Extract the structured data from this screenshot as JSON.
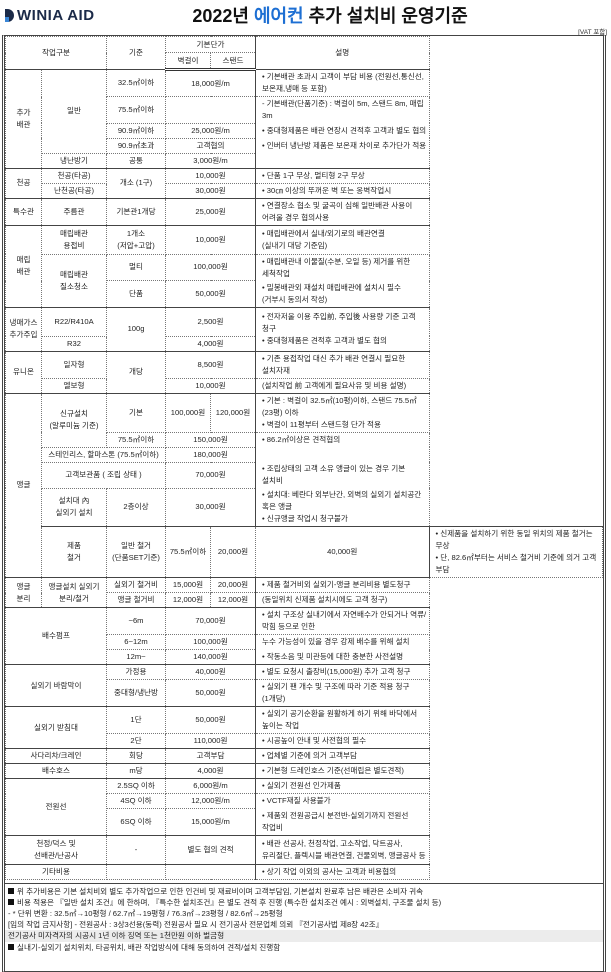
{
  "header": {
    "logo": "WINIA AID",
    "title_pre": "2022년 ",
    "title_hl": "에어컨",
    "title_post": " 추가 설치비 운영기준",
    "vat": "[VAT 포함]",
    "accent_color": "#1d6fd3"
  },
  "table_head": {
    "work_type": "작업구분",
    "standard": "기준",
    "base_price": "기본단가",
    "wall": "벽걸이",
    "stand": "스탠드",
    "description": "설명"
  },
  "rows": [
    [
      "추가\n배관",
      "일반",
      "32.5㎡이하",
      "18,000원/m",
      "• 기본배관 초과시 고객이 부담 비용 (전원선,통신선,보온재,냉매 등 포함)"
    ],
    [
      "75.5㎡이하",
      "",
      "- 기본배관(단품기준) : 벽걸이 5m, 스탠드 8m, 매립 3m"
    ],
    [
      "90.9㎡이하",
      "25,000원/m",
      "• 중대형제품은 배관 연장시 견적후 고객과 별도 협의"
    ],
    [
      "90.9㎡초과",
      "고객협의",
      "• 인버터 냉난방 제품은 보온재 차이로 추가단가 적용"
    ],
    [
      "냉난방기",
      "공통",
      "3,000원/m",
      ""
    ],
    [
      "천공",
      "천공(타공)",
      "개소 (1구)",
      "10,000원",
      "• 단품 1구 무상, 멀티형 2구 무상"
    ],
    [
      "난천공(타공)",
      "30,000원",
      "• 30㎝ 이상의 뚜꺼운 벽 또는 옹벽작업시"
    ],
    [
      "특수관",
      "주름관",
      "기본관1개당",
      "25,000원",
      "• 연결장소 협소 및 굴곡이 심해 일반배관 사용이 어려울 경우 협의사용"
    ],
    [
      "매립\n배관",
      "매립배관\n용접비",
      "1개소\n(저압+고압)",
      "10,000원",
      "• 매립배관에서 실내/외기로의 배관연결\n (실내기 대당 기준임)"
    ],
    [
      "매립배관\n질소청소",
      "멀티",
      "100,000원",
      "• 매립배관내 이물질(수분, 오일 등) 제거를 위한 세척작업"
    ],
    [
      "단품",
      "50,000원",
      "• 밀봉배관외 재설치 매립배관에 설치시 필수 (거부시 동의서 작성)"
    ],
    [
      "냉매가스\n추가주입",
      "R22/R410A",
      "100g",
      "2,500원",
      "• 전자저울 이용 주입前, 주입後 사용량 기준 고객 청구\n• 중대형제품은 견적후 고객과 별도 협의"
    ],
    [
      "R32",
      "4,000원"
    ],
    [
      "유니온",
      "일자형",
      "개당",
      "8,500원",
      "• 기존 용접작업 대신 추가 배관 연결시 필요한 설치자재"
    ],
    [
      "엘보형",
      "10,000원",
      " (설치작업 前 고객에게 필요사유 및 비용 설명)"
    ],
    [
      "앵글",
      "신규설치\n(알루미늄 기준)",
      "기본",
      "100,000원",
      "120,000원",
      "• 기본 : 벽걸이 32.5㎡(10평)이하, 스탠드 75.5㎡(23평) 이하\n• 벽걸이 11평부터 스탠드형 단가 적용"
    ],
    [
      "75.5㎡이하",
      "150,000원",
      "• 86.2㎡이상은 견적협의"
    ],
    [
      "스테인리스, 할마스톤 (75.5㎡이하)",
      "180,000원",
      ""
    ],
    [
      "고객보관품 ( 조립 상태 )",
      "70,000원",
      "• 조립상태의 고객 소유 앵글이 있는 경우 기본 설치비"
    ],
    [
      "설치대 內\n실외기 설치",
      "2층이상",
      "30,000원",
      "• 설치대: 베란다 외부난간, 외벽의 실외기 설치공간 혹은 앵글\n• 신규앵글 작업시 청구불가"
    ],
    [
      "제품\n철거",
      "일반 철거\n(단품SET기준)",
      "75.5㎡이하",
      "20,000원",
      "40,000원",
      "• 신제품을 설치하기 위한 동일 위치의 제품 철거는 무상\n• 단, 82.6㎡부터는 서비스 철거비 기준에 의거 고객 부담"
    ],
    [
      "앵글\n분리",
      "앵글설치 실외기\n분리/철거",
      "실외기 철거비",
      "15,000원",
      "20,000원",
      "• 제품 철거비외 실외기-앵글 분리비용 별도청구"
    ],
    [
      "앵글 철거비",
      "12,000원",
      "12,000원",
      " (동일위치 신제품 설치시에도 고객 청구)"
    ],
    [
      "배수펌프",
      "~6m",
      "70,000원",
      "• 설치 구조상 실내기에서 자연배수가 안되거나 역류/막힘 등으로 인한"
    ],
    [
      "6~12m",
      "100,000원",
      "   누수 가능성이 있을 경우 강제 배수를 위해 설치"
    ],
    [
      "12m~",
      "140,000원",
      "• 작동소음 및 미관등에 대한 충분한 사전설명"
    ],
    [
      "실외기 바람막이",
      "가정용",
      "40,000원",
      "• 별도 요청시 출장비(15,000원) 추가 고객 청구"
    ],
    [
      "중대형/냉난방",
      "50,000원",
      "• 실외기 팬 개수 및 구조에 따라 기준 적용 청구 (1개당)"
    ],
    [
      "실외기 받침대",
      "1단",
      "50,000원",
      "• 실외기 공기순환을 원활하게 하기 위해 바닥에서 높이는 작업"
    ],
    [
      "2단",
      "110,000원",
      "• 시공높이 안내 및 사전협의 필수"
    ],
    [
      "사다리차/크레인",
      "회당",
      "고객부담",
      "• 업체별 기준에 의거 고객부담"
    ],
    [
      "배수호스",
      "m당",
      "4,000원",
      "• 기본형 드레인호스 기준(선매립은 별도견적)"
    ],
    [
      "전원선",
      "2.5SQ 이하",
      "6,000원/m",
      "• 실외기 전원선 인가제품"
    ],
    [
      "4SQ 이하",
      "12,000원/m",
      "• VCTF재질 사용불가"
    ],
    [
      "6SQ 이하",
      "15,000원/m",
      "• 제품외 전원공급시 분전반-실외기까지 전원선 작업비"
    ],
    [
      "천정/덕스 및\n선배관/난공사",
      "-",
      "별도 협의 견적",
      "• 배관 선공사, 천정작업, 고소작업, 닥트공사,\n  유리절단, 플렉시블 배관연결, 건물외벽, 앵글공사 등"
    ],
    [
      "기타비용",
      "",
      "",
      "• 상기 작업 이외의 공사는 고객과 비용협의"
    ]
  ],
  "notes": [
    {
      "text": "위 추가비용은 기본 설치비외 별도 추가작업으로 인한 인건비 및 재료비이며 고객부담임, 기본설치 완료후 남은 배관은 소비자 귀속",
      "bullet": true
    },
    {
      "text": "비용 적용은 『일반 설치 조건』에 한하며, 『특수한 설치조건』은 별도 견적 후 진행 (특수한 설치조건 예시 : 외벽설치, 구조물 설치 등)",
      "bullet": true
    },
    {
      "text": " - * 단위 변환 :  32.5㎡→10평형 / 62.7㎡→19평형  /  76.3㎡→23평형  /  82.6㎡→25평형",
      "bullet": false
    },
    {
      "text": "[임의 작업 금지사항]  - 전원공사 : 3상3선용(동력) 전원공사 필요 시 전기공사 전문업체 의뢰 『전기공사법 제8장 42조』",
      "bullet": false
    },
    {
      "text": " 전기공사 미자격자의 시공시 1년 이하 징역 또는 1천만원 이하 벌금형",
      "bullet": false
    },
    {
      "text": "실내기-실외기 설치위치, 타공위치, 배관 작업방식에 대해 동의하여 견적/설치 진행함",
      "bullet": true
    }
  ]
}
